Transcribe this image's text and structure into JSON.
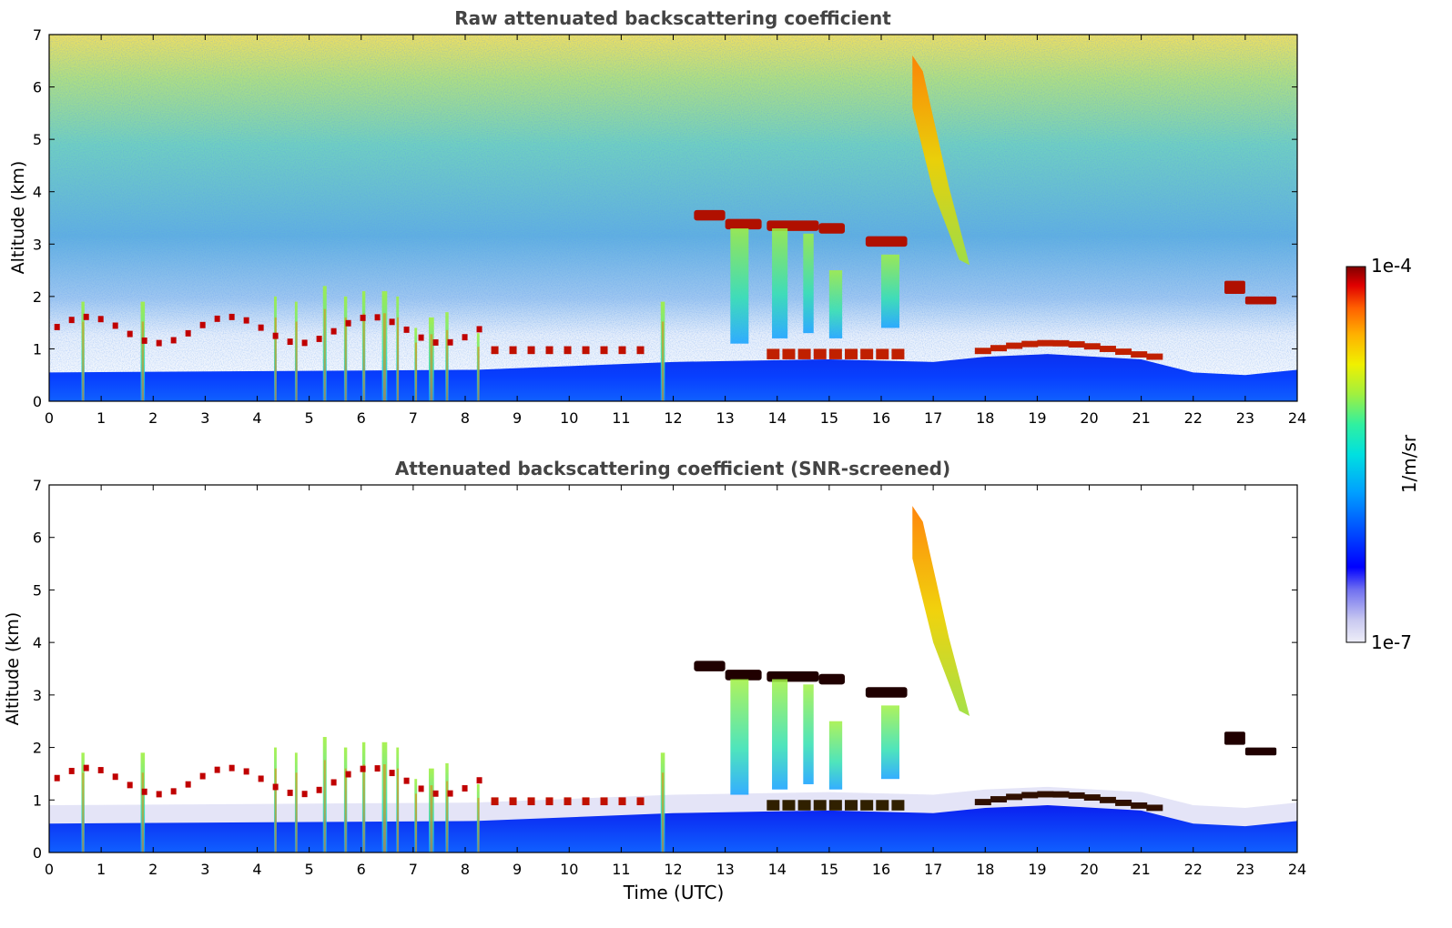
{
  "chart_data": [
    {
      "type": "heatmap",
      "title": "Raw attenuated backscattering coefficient",
      "xlabel": "",
      "ylabel": "Altitude (km)",
      "xlim": [
        0,
        24
      ],
      "ylim": [
        0,
        7
      ],
      "x_ticks": [
        "0",
        "1",
        "2",
        "3",
        "4",
        "5",
        "6",
        "7",
        "8",
        "9",
        "10",
        "11",
        "12",
        "13",
        "14",
        "15",
        "16",
        "17",
        "18",
        "19",
        "20",
        "21",
        "22",
        "23",
        "24"
      ],
      "y_ticks": [
        "0",
        "1",
        "2",
        "3",
        "4",
        "5",
        "6",
        "7"
      ],
      "features": {
        "boundary_layer_top_km": [
          [
            0,
            0.55
          ],
          [
            8.2,
            0.6
          ],
          [
            12,
            0.75
          ],
          [
            15,
            0.8
          ],
          [
            17,
            0.75
          ],
          [
            18,
            0.85
          ],
          [
            19.2,
            0.9
          ],
          [
            21,
            0.8
          ],
          [
            22,
            0.55
          ],
          [
            23,
            0.5
          ],
          [
            24,
            0.6
          ]
        ],
        "elevated_layers": [
          {
            "name": "mid-level cloud band",
            "x": [
              12.4,
              15.5
            ],
            "y_km": 3.4
          },
          {
            "name": "cloud fragments",
            "x": [
              15.8,
              16.5
            ],
            "y_km": 3.05
          },
          {
            "name": "descending cirrus streak",
            "x": [
              16.6,
              17.6
            ],
            "y_km": [
              6.7,
              2.6
            ]
          },
          {
            "name": "low cloud bases",
            "x": [
              0,
              8.3
            ],
            "y_km": 1.45
          },
          {
            "name": "layer top aerosol",
            "x": [
              18,
              21
            ],
            "y_km": 0.95
          },
          {
            "name": "small cloud",
            "x": [
              22.6,
              23.9
            ],
            "y_km": 2.1
          }
        ]
      }
    },
    {
      "type": "heatmap",
      "title": "Attenuated backscattering coefficient (SNR-screened)",
      "xlabel": "Time (UTC)",
      "ylabel": "Altitude (km)",
      "xlim": [
        0,
        24
      ],
      "ylim": [
        0,
        7
      ],
      "x_ticks": [
        "0",
        "1",
        "2",
        "3",
        "4",
        "5",
        "6",
        "7",
        "8",
        "9",
        "10",
        "11",
        "12",
        "13",
        "14",
        "15",
        "16",
        "17",
        "18",
        "19",
        "20",
        "21",
        "22",
        "23",
        "24"
      ],
      "y_ticks": [
        "0",
        "1",
        "2",
        "3",
        "4",
        "5",
        "6",
        "7"
      ],
      "screening": "SNR-screened (noise removed above ~2 km)"
    }
  ],
  "colorbar": {
    "label": "1/m/sr",
    "max_label": "1e-4",
    "min_label": "1e-7",
    "scale": "log",
    "range": [
      1e-07,
      0.0001
    ],
    "colors": [
      "#eeeef8",
      "#c8c8f0",
      "#7070f0",
      "#0000ff",
      "#0050ff",
      "#00a0ff",
      "#00e0e0",
      "#30f0a0",
      "#a0f040",
      "#f0f000",
      "#ffb000",
      "#ff6000",
      "#e00000",
      "#800000"
    ]
  }
}
